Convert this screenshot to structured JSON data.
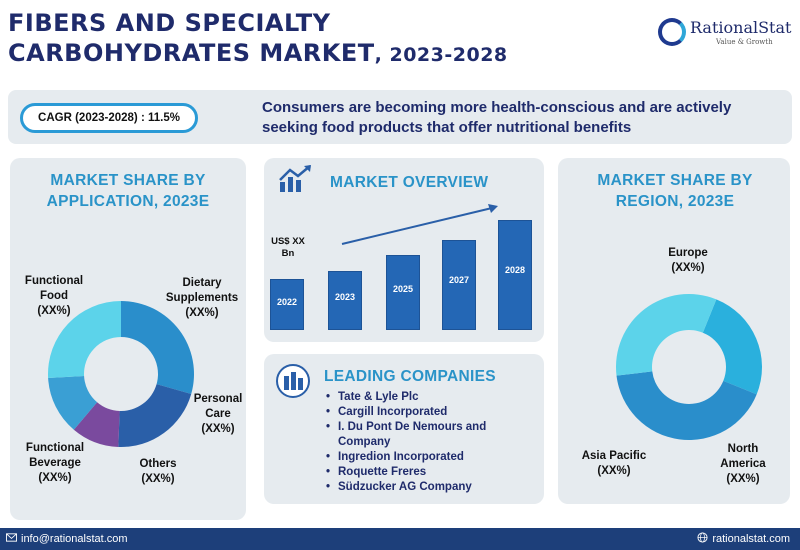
{
  "header": {
    "title_line1": "FIBERS AND SPECIALTY",
    "title_line2": "CARBOHYDRATES MARKET",
    "title_suffix": ", 2023-2028",
    "logo_name": "RationalStat",
    "logo_tagline": "Value & Growth"
  },
  "banner": {
    "cagr": "CAGR (2023-2028) : 11.5%",
    "text": "Consumers are becoming more health-conscious and are actively seeking food products that offer nutritional benefits"
  },
  "application": {
    "title": "MARKET SHARE BY APPLICATION, 2023E",
    "segments": [
      {
        "label": "Functional Food",
        "value": "(XX%)",
        "share": 0.25,
        "color": "#2a8ecb"
      },
      {
        "label": "Dietary Supplements",
        "value": "(XX%)",
        "share": 0.18,
        "color": "#2a5fa8"
      },
      {
        "label": "Personal Care",
        "value": "(XX%)",
        "share": 0.09,
        "color": "#7a4a9e"
      },
      {
        "label": "Others",
        "value": "(XX%)",
        "share": 0.11,
        "color": "#3a9fd4"
      },
      {
        "label": "Functional Beverage",
        "value": "(XX%)",
        "share": 0.22,
        "color": "#5cd3ea"
      }
    ]
  },
  "overview": {
    "title": "MARKET OVERVIEW",
    "ylabel": "US$ XX Bn",
    "years": [
      "2022",
      "2023",
      "2025",
      "2027",
      "2028"
    ],
    "values": [
      36,
      42,
      53,
      64,
      78
    ]
  },
  "companies": {
    "title": "LEADING COMPANIES",
    "items": [
      "Tate & Lyle Plc",
      "Cargill Incorporated",
      "I. Du Pont De Nemours and Company",
      "Ingredion Incorporated",
      "Roquette Freres",
      "Südzucker AG Company"
    ]
  },
  "region": {
    "title": "MARKET SHARE BY REGION, 2023E",
    "segments": [
      {
        "label": "Europe",
        "value": "(XX%)",
        "share": 0.25,
        "color": "#2ab0dd"
      },
      {
        "label": "North America",
        "value": "(XX%)",
        "share": 0.42,
        "color": "#2a8ecb"
      },
      {
        "label": "Asia Pacific",
        "value": "(XX%)",
        "share": 0.33,
        "color": "#5cd3ea"
      }
    ]
  },
  "footer": {
    "email": "info@rationalstat.com",
    "website": "rationalstat.com"
  }
}
